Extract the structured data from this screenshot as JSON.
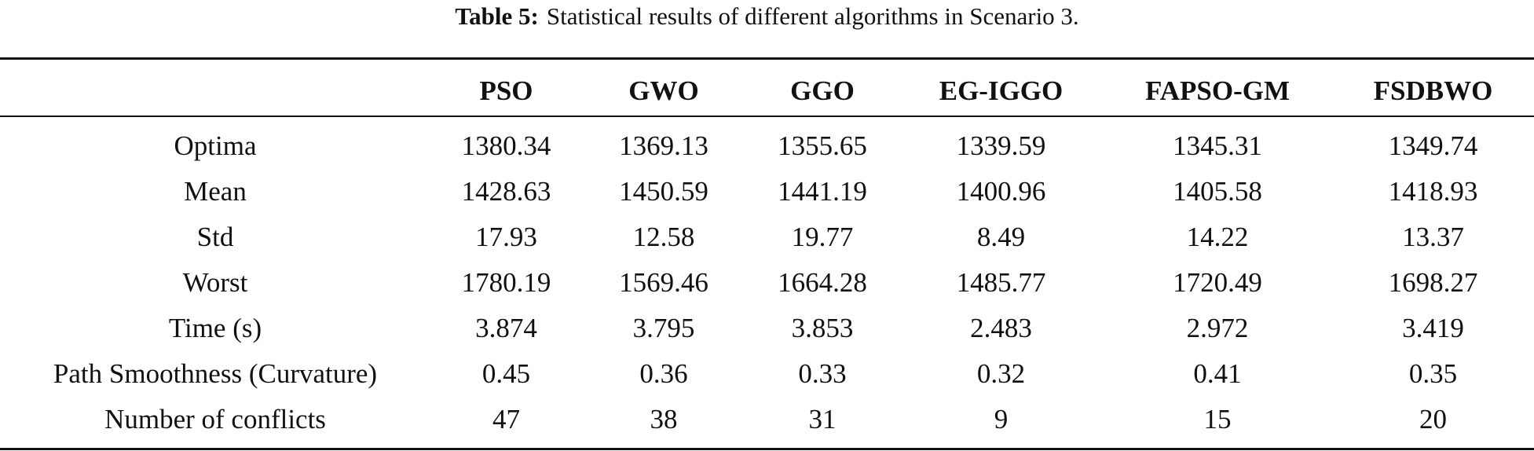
{
  "caption": {
    "label": "Table 5:",
    "text": "Statistical results of different algorithms in Scenario 3."
  },
  "table": {
    "columns": [
      "",
      "PSO",
      "GWO",
      "GGO",
      "EG-IGGO",
      "FAPSO-GM",
      "FSDBWO"
    ],
    "rows": [
      [
        "Optima",
        "1380.34",
        "1369.13",
        "1355.65",
        "1339.59",
        "1345.31",
        "1349.74"
      ],
      [
        "Mean",
        "1428.63",
        "1450.59",
        "1441.19",
        "1400.96",
        "1405.58",
        "1418.93"
      ],
      [
        "Std",
        "17.93",
        "12.58",
        "19.77",
        "8.49",
        "14.22",
        "13.37"
      ],
      [
        "Worst",
        "1780.19",
        "1569.46",
        "1664.28",
        "1485.77",
        "1720.49",
        "1698.27"
      ],
      [
        "Time (s)",
        "3.874",
        "3.795",
        "3.853",
        "2.483",
        "2.972",
        "3.419"
      ],
      [
        "Path Smoothness (Curvature)",
        "0.45",
        "0.36",
        "0.33",
        "0.32",
        "0.41",
        "0.35"
      ],
      [
        "Number of conflicts",
        "47",
        "38",
        "31",
        "9",
        "15",
        "20"
      ]
    ]
  }
}
